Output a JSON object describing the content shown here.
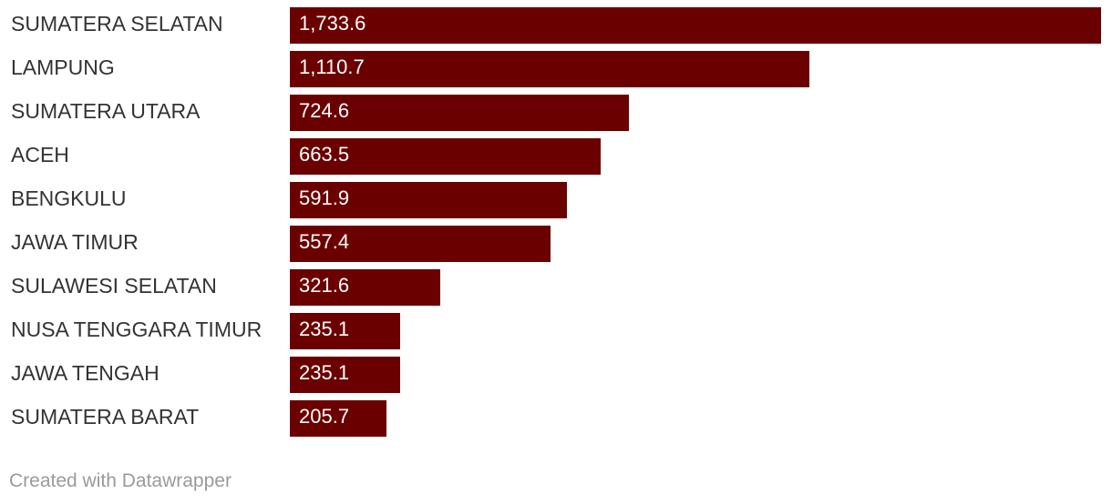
{
  "chart_data": {
    "type": "bar",
    "orientation": "horizontal",
    "categories": [
      "SUMATERA SELATAN",
      "LAMPUNG",
      "SUMATERA UTARA",
      "ACEH",
      "BENGKULU",
      "JAWA TIMUR",
      "SULAWESI SELATAN",
      "NUSA TENGGARA TIMUR",
      "JAWA TENGAH",
      "SUMATERA BARAT"
    ],
    "values": [
      1733.6,
      1110.7,
      724.6,
      663.5,
      591.9,
      557.4,
      321.6,
      235.1,
      235.1,
      205.7
    ],
    "value_labels": [
      "1,733.6",
      "1,110.7",
      "724.6",
      "663.5",
      "591.9",
      "557.4",
      "321.6",
      "235.1",
      "235.1",
      "205.7"
    ],
    "bar_color": "#6b0000",
    "xlim": [
      0,
      1733.6
    ],
    "grid": false,
    "legend": "none"
  },
  "footer": {
    "credit": "Created with Datawrapper"
  }
}
